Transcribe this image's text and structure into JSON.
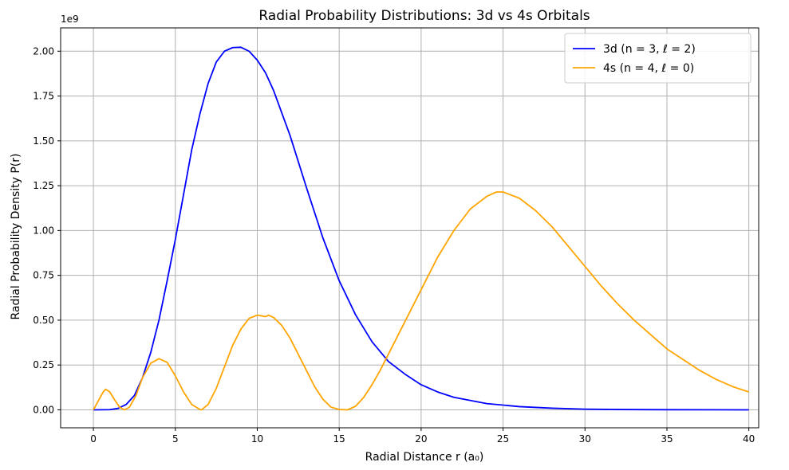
{
  "chart_data": {
    "type": "line",
    "title": "Radial Probability Distributions: 3d vs 4s Orbitals",
    "xlabel": "Radial Distance r (a₀)",
    "ylabel": "Radial Probability Density P(r)",
    "y_scale_label": "1e9",
    "xlim": [
      -2,
      40.6
    ],
    "ylim": [
      -0.1,
      2.13
    ],
    "xticks": [
      0,
      5,
      10,
      15,
      20,
      25,
      30,
      35,
      40
    ],
    "xtick_labels": [
      "0",
      "5",
      "10",
      "15",
      "20",
      "25",
      "30",
      "35",
      "40"
    ],
    "yticks": [
      0,
      0.25,
      0.5,
      0.75,
      1.0,
      1.25,
      1.5,
      1.75,
      2.0
    ],
    "ytick_labels": [
      "0.00",
      "0.25",
      "0.50",
      "0.75",
      "1.00",
      "1.25",
      "1.50",
      "1.75",
      "2.00"
    ],
    "grid": true,
    "legend_position": "top-right",
    "series": [
      {
        "name": "3d (n = 3, ℓ = 2)",
        "color": "#0000ff",
        "x": [
          0,
          1,
          1.5,
          2,
          2.5,
          3,
          3.5,
          4,
          4.5,
          5,
          5.5,
          6,
          6.5,
          7,
          7.5,
          8,
          8.5,
          9,
          9.5,
          10,
          10.5,
          11,
          12,
          13,
          14,
          15,
          16,
          17,
          18,
          19,
          20,
          21,
          22,
          24,
          26,
          28,
          30,
          32,
          35,
          40
        ],
        "y": [
          0,
          0.001,
          0.008,
          0.03,
          0.08,
          0.18,
          0.32,
          0.5,
          0.72,
          0.95,
          1.2,
          1.45,
          1.65,
          1.82,
          1.94,
          2.0,
          2.02,
          2.022,
          2.0,
          1.95,
          1.88,
          1.78,
          1.53,
          1.24,
          0.96,
          0.72,
          0.53,
          0.38,
          0.27,
          0.2,
          0.14,
          0.1,
          0.07,
          0.035,
          0.018,
          0.009,
          0.004,
          0.002,
          0.0008,
          0.0001
        ]
      },
      {
        "name": "4s (n = 4, ℓ = 0)",
        "color": "#ffa500",
        "x": [
          0,
          0.3,
          0.6,
          0.75,
          1,
          1.3,
          1.6,
          1.9,
          2.2,
          2.6,
          3,
          3.5,
          4,
          4.5,
          5,
          5.5,
          6,
          6.5,
          6.6,
          7,
          7.5,
          8,
          8.5,
          9,
          9.5,
          10,
          10.5,
          10.7,
          11,
          11.5,
          12,
          12.5,
          13,
          13.5,
          14,
          14.5,
          15,
          15.5,
          16,
          16.5,
          17,
          17.5,
          18,
          18.5,
          19,
          19.5,
          20,
          21,
          22,
          23,
          24,
          24.6,
          25,
          26,
          27,
          28,
          29,
          30,
          31,
          32,
          33,
          34,
          35,
          36,
          37,
          38,
          39,
          40
        ],
        "y": [
          0,
          0.05,
          0.1,
          0.115,
          0.1,
          0.055,
          0.015,
          0.0,
          0.015,
          0.08,
          0.18,
          0.26,
          0.285,
          0.265,
          0.19,
          0.1,
          0.03,
          0.002,
          0.0,
          0.03,
          0.12,
          0.24,
          0.36,
          0.45,
          0.51,
          0.528,
          0.52,
          0.528,
          0.515,
          0.47,
          0.4,
          0.31,
          0.22,
          0.13,
          0.06,
          0.015,
          0.002,
          0.0,
          0.02,
          0.07,
          0.14,
          0.22,
          0.31,
          0.4,
          0.49,
          0.58,
          0.67,
          0.85,
          1.0,
          1.12,
          1.19,
          1.215,
          1.215,
          1.18,
          1.11,
          1.02,
          0.91,
          0.8,
          0.69,
          0.59,
          0.5,
          0.42,
          0.34,
          0.28,
          0.22,
          0.17,
          0.13,
          0.1
        ]
      }
    ]
  }
}
